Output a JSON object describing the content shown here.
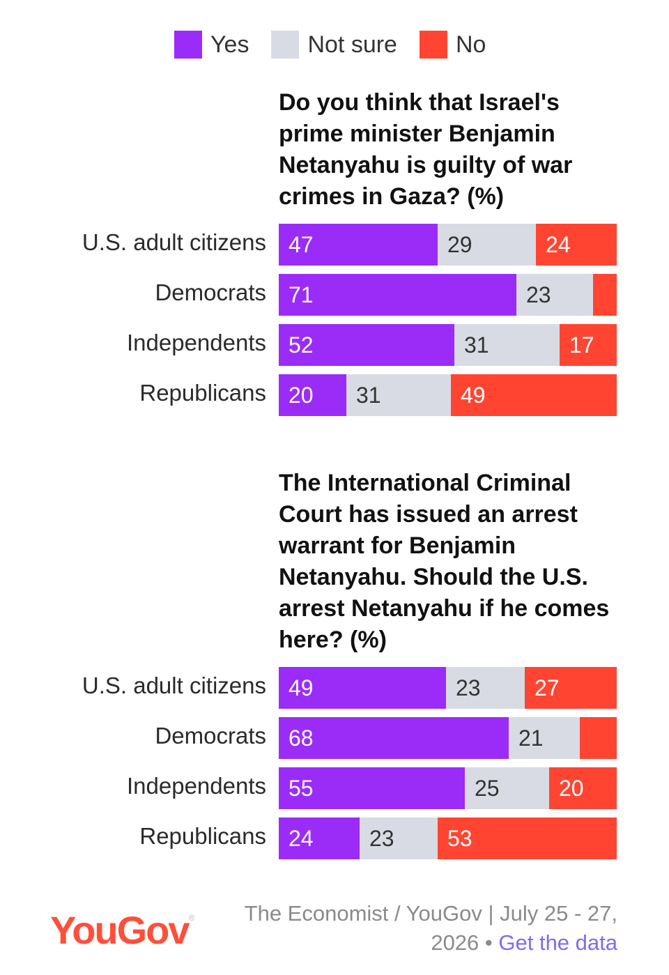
{
  "legend": [
    {
      "label": "Yes",
      "color": "#9b2cf8"
    },
    {
      "label": "Not sure",
      "color": "#d8dbe3"
    },
    {
      "label": "No",
      "color": "#ff4532"
    }
  ],
  "chart_data": [
    {
      "type": "bar",
      "orientation": "horizontal-stacked",
      "title": "Do you think that Israel's prime minister Benjamin Netanyahu is guilty of war crimes in Gaza? (%)",
      "categories": [
        "U.S. adult citizens",
        "Democrats",
        "Independents",
        "Republicans"
      ],
      "series": [
        {
          "name": "Yes",
          "values": [
            47,
            71,
            52,
            20
          ],
          "labels": [
            "47",
            "71",
            "52",
            "20"
          ]
        },
        {
          "name": "Not sure",
          "values": [
            29,
            23,
            31,
            31
          ],
          "labels": [
            "29",
            "23",
            "31",
            "31"
          ]
        },
        {
          "name": "No",
          "values": [
            24,
            7,
            17,
            49
          ],
          "labels": [
            "24",
            "",
            "17",
            "49"
          ]
        }
      ],
      "xlim": [
        0,
        100
      ]
    },
    {
      "type": "bar",
      "orientation": "horizontal-stacked",
      "title": "The International Criminal Court has issued an arrest warrant for Benjamin Netanyahu. Should the U.S. arrest Netanyahu if he comes here? (%)",
      "categories": [
        "U.S. adult citizens",
        "Democrats",
        "Independents",
        "Republicans"
      ],
      "series": [
        {
          "name": "Yes",
          "values": [
            49,
            68,
            55,
            24
          ],
          "labels": [
            "49",
            "68",
            "55",
            "24"
          ]
        },
        {
          "name": "Not sure",
          "values": [
            23,
            21,
            25,
            23
          ],
          "labels": [
            "23",
            "21",
            "25",
            "23"
          ]
        },
        {
          "name": "No",
          "values": [
            27,
            11,
            20,
            53
          ],
          "labels": [
            "27",
            "",
            "20",
            "53"
          ]
        }
      ],
      "xlim": [
        0,
        100
      ]
    }
  ],
  "footer": {
    "logo": "YouGov",
    "source_text": "The Economist / YouGov | July 25 - 27, 2026 • ",
    "link_text": "Get the data"
  }
}
